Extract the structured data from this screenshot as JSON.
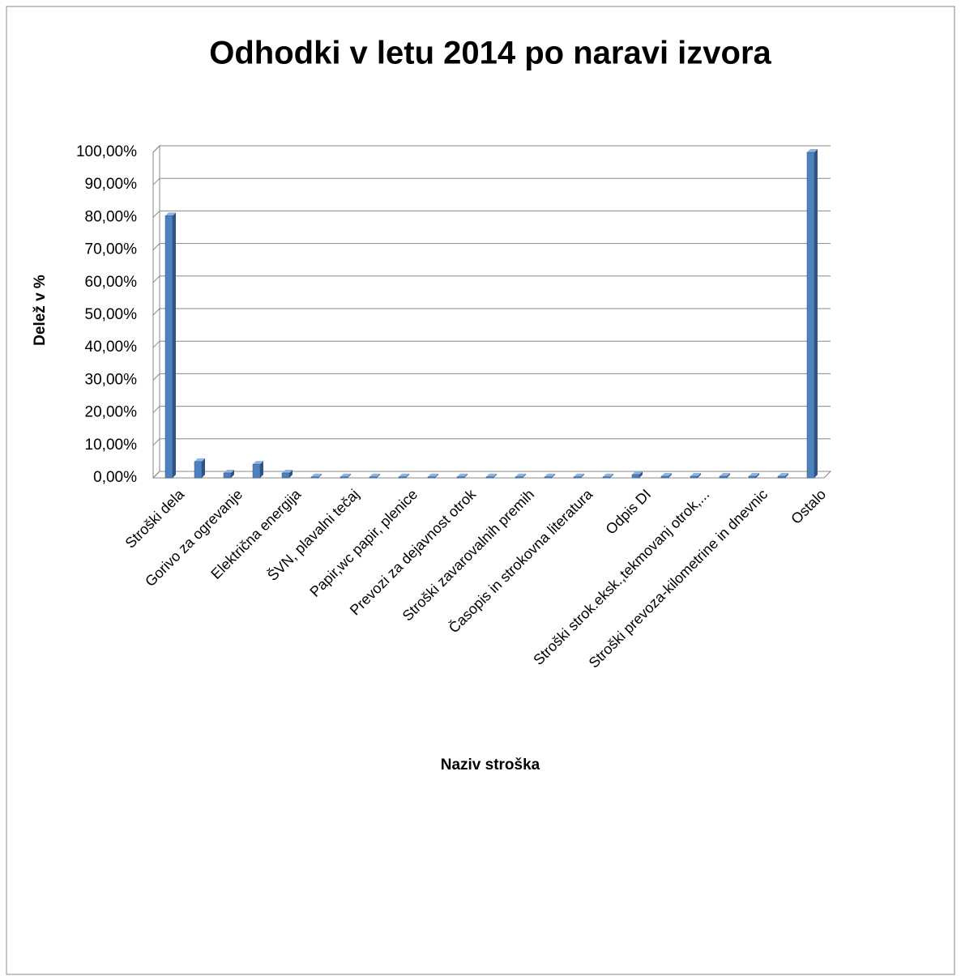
{
  "chart_data": {
    "type": "bar",
    "title": "Odhodki v letu 2014 po naravi izvora",
    "ylabel": "Delež v %",
    "xlabel": "Naziv stroška",
    "categories": [
      "Stroški dela",
      null,
      "Gorivo za ogrevanje",
      null,
      "Električna energija",
      null,
      "ŠVN, plavalni tečaj",
      null,
      "Papir,wc papir, plenice",
      null,
      "Prevozi za dejavnost otrok",
      null,
      "Stroški zavarovalnih premih",
      null,
      "Časopis in strokovna literatura",
      null,
      "Odpis DI",
      null,
      "Stroški strok.eksk.,tekmovanj otrok,...",
      null,
      "Stroški prevoza-kilometrine in dnevnic",
      null,
      "Ostalo"
    ],
    "values": [
      80.5,
      5,
      1.5,
      4.2,
      1.5,
      0.3,
      0.3,
      0.3,
      0.3,
      0.3,
      0.3,
      0.3,
      0.3,
      0.3,
      0.3,
      0.3,
      1,
      0.5,
      0.5,
      0.5,
      0.5,
      0.5,
      100
    ],
    "color": "#4f81bd",
    "ylim": [
      0,
      100
    ],
    "yticks": [
      {
        "value": 0,
        "label": "0,00%"
      },
      {
        "value": 10,
        "label": "10,00%"
      },
      {
        "value": 20,
        "label": "20,00%"
      },
      {
        "value": 30,
        "label": "30,00%"
      },
      {
        "value": 40,
        "label": "40,00%"
      },
      {
        "value": 50,
        "label": "50,00%"
      },
      {
        "value": 60,
        "label": "60,00%"
      },
      {
        "value": 70,
        "label": "70,00%"
      },
      {
        "value": 80,
        "label": "80,00%"
      },
      {
        "value": 90,
        "label": "90,00%"
      },
      {
        "value": 100,
        "label": "100,00%"
      }
    ],
    "grid": true
  }
}
